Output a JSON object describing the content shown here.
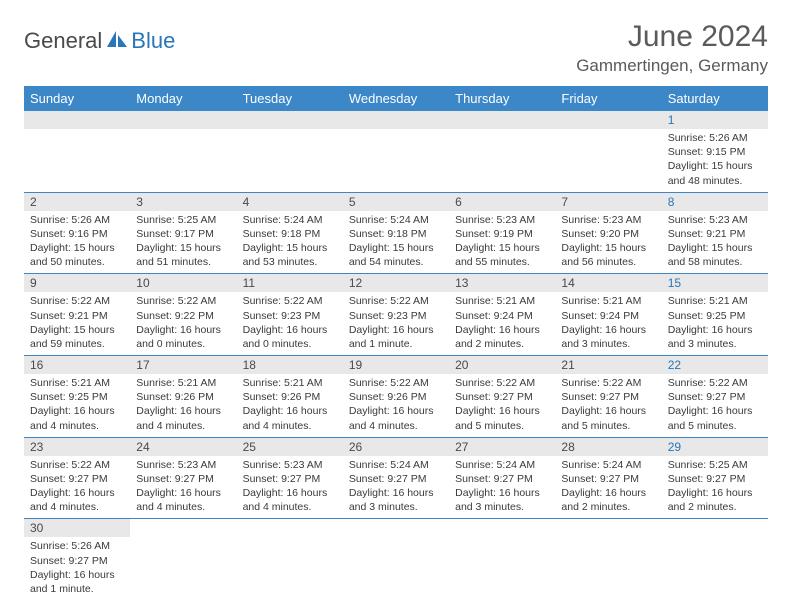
{
  "logo": {
    "part1": "General",
    "part2": "Blue"
  },
  "title": "June 2024",
  "location": "Gammertingen, Germany",
  "colors": {
    "header_bg": "#3b87c8",
    "header_text": "#ffffff",
    "daynum_bg": "#e8e8e8",
    "border": "#3b87c8",
    "logo_gray": "#4a4a4a",
    "logo_blue": "#2976b9",
    "saturday_text": "#2976b9"
  },
  "weekdays": [
    "Sunday",
    "Monday",
    "Tuesday",
    "Wednesday",
    "Thursday",
    "Friday",
    "Saturday"
  ],
  "weeks": [
    [
      null,
      null,
      null,
      null,
      null,
      null,
      {
        "n": "1",
        "sunrise": "5:26 AM",
        "sunset": "9:15 PM",
        "daylight": "15 hours and 48 minutes."
      }
    ],
    [
      {
        "n": "2",
        "sunrise": "5:26 AM",
        "sunset": "9:16 PM",
        "daylight": "15 hours and 50 minutes."
      },
      {
        "n": "3",
        "sunrise": "5:25 AM",
        "sunset": "9:17 PM",
        "daylight": "15 hours and 51 minutes."
      },
      {
        "n": "4",
        "sunrise": "5:24 AM",
        "sunset": "9:18 PM",
        "daylight": "15 hours and 53 minutes."
      },
      {
        "n": "5",
        "sunrise": "5:24 AM",
        "sunset": "9:18 PM",
        "daylight": "15 hours and 54 minutes."
      },
      {
        "n": "6",
        "sunrise": "5:23 AM",
        "sunset": "9:19 PM",
        "daylight": "15 hours and 55 minutes."
      },
      {
        "n": "7",
        "sunrise": "5:23 AM",
        "sunset": "9:20 PM",
        "daylight": "15 hours and 56 minutes."
      },
      {
        "n": "8",
        "sunrise": "5:23 AM",
        "sunset": "9:21 PM",
        "daylight": "15 hours and 58 minutes."
      }
    ],
    [
      {
        "n": "9",
        "sunrise": "5:22 AM",
        "sunset": "9:21 PM",
        "daylight": "15 hours and 59 minutes."
      },
      {
        "n": "10",
        "sunrise": "5:22 AM",
        "sunset": "9:22 PM",
        "daylight": "16 hours and 0 minutes."
      },
      {
        "n": "11",
        "sunrise": "5:22 AM",
        "sunset": "9:23 PM",
        "daylight": "16 hours and 0 minutes."
      },
      {
        "n": "12",
        "sunrise": "5:22 AM",
        "sunset": "9:23 PM",
        "daylight": "16 hours and 1 minute."
      },
      {
        "n": "13",
        "sunrise": "5:21 AM",
        "sunset": "9:24 PM",
        "daylight": "16 hours and 2 minutes."
      },
      {
        "n": "14",
        "sunrise": "5:21 AM",
        "sunset": "9:24 PM",
        "daylight": "16 hours and 3 minutes."
      },
      {
        "n": "15",
        "sunrise": "5:21 AM",
        "sunset": "9:25 PM",
        "daylight": "16 hours and 3 minutes."
      }
    ],
    [
      {
        "n": "16",
        "sunrise": "5:21 AM",
        "sunset": "9:25 PM",
        "daylight": "16 hours and 4 minutes."
      },
      {
        "n": "17",
        "sunrise": "5:21 AM",
        "sunset": "9:26 PM",
        "daylight": "16 hours and 4 minutes."
      },
      {
        "n": "18",
        "sunrise": "5:21 AM",
        "sunset": "9:26 PM",
        "daylight": "16 hours and 4 minutes."
      },
      {
        "n": "19",
        "sunrise": "5:22 AM",
        "sunset": "9:26 PM",
        "daylight": "16 hours and 4 minutes."
      },
      {
        "n": "20",
        "sunrise": "5:22 AM",
        "sunset": "9:27 PM",
        "daylight": "16 hours and 5 minutes."
      },
      {
        "n": "21",
        "sunrise": "5:22 AM",
        "sunset": "9:27 PM",
        "daylight": "16 hours and 5 minutes."
      },
      {
        "n": "22",
        "sunrise": "5:22 AM",
        "sunset": "9:27 PM",
        "daylight": "16 hours and 5 minutes."
      }
    ],
    [
      {
        "n": "23",
        "sunrise": "5:22 AM",
        "sunset": "9:27 PM",
        "daylight": "16 hours and 4 minutes."
      },
      {
        "n": "24",
        "sunrise": "5:23 AM",
        "sunset": "9:27 PM",
        "daylight": "16 hours and 4 minutes."
      },
      {
        "n": "25",
        "sunrise": "5:23 AM",
        "sunset": "9:27 PM",
        "daylight": "16 hours and 4 minutes."
      },
      {
        "n": "26",
        "sunrise": "5:24 AM",
        "sunset": "9:27 PM",
        "daylight": "16 hours and 3 minutes."
      },
      {
        "n": "27",
        "sunrise": "5:24 AM",
        "sunset": "9:27 PM",
        "daylight": "16 hours and 3 minutes."
      },
      {
        "n": "28",
        "sunrise": "5:24 AM",
        "sunset": "9:27 PM",
        "daylight": "16 hours and 2 minutes."
      },
      {
        "n": "29",
        "sunrise": "5:25 AM",
        "sunset": "9:27 PM",
        "daylight": "16 hours and 2 minutes."
      }
    ],
    [
      {
        "n": "30",
        "sunrise": "5:26 AM",
        "sunset": "9:27 PM",
        "daylight": "16 hours and 1 minute."
      },
      null,
      null,
      null,
      null,
      null,
      null
    ]
  ]
}
